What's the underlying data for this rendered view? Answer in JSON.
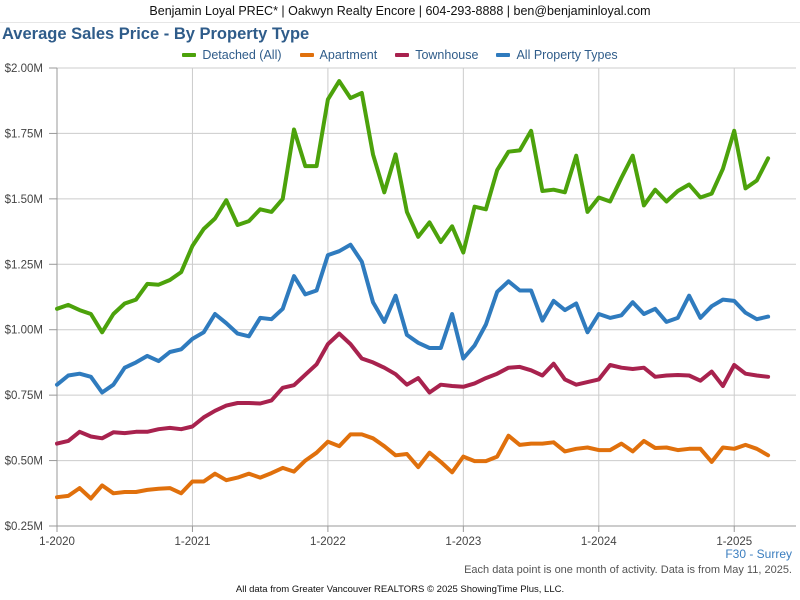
{
  "header": {
    "text": "Benjamin Loyal PREC* | Oakwyn Realty Encore | 604-293-8888 | ben@benjaminloyal.com"
  },
  "region_label": "F30 - Surrey",
  "note": "Each data point is one month of activity. Data is from May 11, 2025.",
  "footer": "All data from Greater Vancouver REALTORS © 2025 ShowingTime Plus, LLC.",
  "colors": {
    "title": "#2f5c8a",
    "grid": "#cccccc",
    "axis": "#999999"
  },
  "chart_data": {
    "type": "line",
    "title": "Average Sales Price - By Property Type",
    "xlabel": "",
    "ylabel": "",
    "x_start": "2020-01",
    "x_end": "2025-04",
    "x_ticks": [
      "1-2020",
      "1-2021",
      "1-2022",
      "1-2023",
      "1-2024",
      "1-2025"
    ],
    "ylim": [
      250000,
      2000000
    ],
    "y_ticks": [
      250000,
      500000,
      750000,
      1000000,
      1250000,
      1500000,
      1750000,
      2000000
    ],
    "y_tick_labels": [
      "$0.25M",
      "$0.50M",
      "$0.75M",
      "$1.00M",
      "$1.25M",
      "$1.50M",
      "$1.75M",
      "$2.00M"
    ],
    "grid": true,
    "legend_position": "top-center",
    "series": [
      {
        "name": "Detached (All)",
        "color": "#4ca20b",
        "values": [
          1080000,
          1095000,
          1075000,
          1060000,
          990000,
          1060000,
          1100000,
          1115000,
          1175000,
          1172000,
          1190000,
          1220000,
          1320000,
          1385000,
          1425000,
          1495000,
          1400000,
          1415000,
          1460000,
          1450000,
          1500000,
          1765000,
          1625000,
          1625000,
          1880000,
          1950000,
          1885000,
          1905000,
          1670000,
          1525000,
          1670000,
          1450000,
          1355000,
          1410000,
          1335000,
          1395000,
          1295000,
          1470000,
          1460000,
          1610000,
          1680000,
          1685000,
          1760000,
          1530000,
          1535000,
          1525000,
          1665000,
          1450000,
          1505000,
          1490000,
          1580000,
          1665000,
          1475000,
          1535000,
          1490000,
          1530000,
          1555000,
          1505000,
          1520000,
          1615000,
          1760000,
          1540000,
          1570000,
          1655000
        ]
      },
      {
        "name": "Apartment",
        "color": "#e0700c",
        "values": [
          360000,
          365000,
          395000,
          355000,
          405000,
          375000,
          380000,
          380000,
          388000,
          392000,
          395000,
          375000,
          420000,
          420000,
          450000,
          425000,
          435000,
          450000,
          435000,
          452000,
          472000,
          458000,
          500000,
          530000,
          572000,
          555000,
          600000,
          600000,
          585000,
          555000,
          520000,
          525000,
          475000,
          530000,
          495000,
          455000,
          515000,
          498000,
          498000,
          515000,
          595000,
          560000,
          565000,
          565000,
          570000,
          535000,
          545000,
          550000,
          540000,
          540000,
          565000,
          535000,
          575000,
          548000,
          550000,
          540000,
          545000,
          545000,
          495000,
          550000,
          545000,
          560000,
          545000,
          520000
        ]
      },
      {
        "name": "Townhouse",
        "color": "#a8224e",
        "values": [
          565000,
          575000,
          610000,
          592000,
          585000,
          608000,
          605000,
          610000,
          610000,
          620000,
          625000,
          620000,
          630000,
          665000,
          690000,
          710000,
          720000,
          720000,
          718000,
          730000,
          778000,
          788000,
          828000,
          868000,
          945000,
          985000,
          945000,
          890000,
          875000,
          855000,
          830000,
          790000,
          815000,
          760000,
          790000,
          785000,
          782000,
          795000,
          815000,
          832000,
          855000,
          858000,
          845000,
          825000,
          870000,
          810000,
          790000,
          800000,
          810000,
          865000,
          855000,
          850000,
          855000,
          820000,
          825000,
          827000,
          825000,
          805000,
          840000,
          785000,
          865000,
          832000,
          825000,
          820000
        ]
      },
      {
        "name": "All Property Types",
        "color": "#2f7bbe",
        "values": [
          790000,
          825000,
          832000,
          820000,
          760000,
          790000,
          855000,
          875000,
          900000,
          880000,
          915000,
          925000,
          965000,
          990000,
          1060000,
          1025000,
          985000,
          975000,
          1045000,
          1040000,
          1080000,
          1205000,
          1135000,
          1150000,
          1285000,
          1300000,
          1325000,
          1260000,
          1105000,
          1030000,
          1130000,
          980000,
          950000,
          930000,
          930000,
          1060000,
          890000,
          940000,
          1020000,
          1145000,
          1185000,
          1150000,
          1150000,
          1035000,
          1110000,
          1075000,
          1100000,
          990000,
          1060000,
          1045000,
          1055000,
          1105000,
          1060000,
          1080000,
          1030000,
          1045000,
          1130000,
          1045000,
          1090000,
          1115000,
          1110000,
          1065000,
          1040000,
          1050000
        ]
      }
    ]
  }
}
